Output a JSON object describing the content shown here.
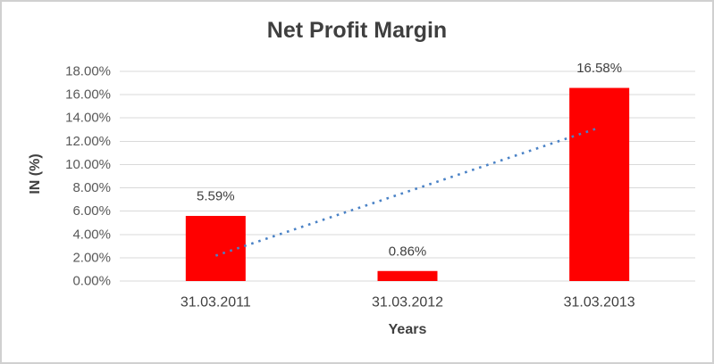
{
  "chart_data": {
    "type": "bar",
    "title": "Net Profit Margin",
    "xlabel": "Years",
    "ylabel": "IN (%)",
    "categories": [
      "31.03.2011",
      "31.03.2012",
      "31.03.2013"
    ],
    "values": [
      5.59,
      0.86,
      16.58
    ],
    "data_labels": [
      "5.59%",
      "0.86%",
      "16.58%"
    ],
    "ylim": [
      0,
      18
    ],
    "ytick_step": 2,
    "yticks": [
      "0.00%",
      "2.00%",
      "4.00%",
      "6.00%",
      "8.00%",
      "10.00%",
      "12.00%",
      "14.00%",
      "16.00%",
      "18.00%"
    ],
    "grid": true,
    "legend": false,
    "colors": {
      "bar": "#ff0000",
      "gridline": "#d9d9d9",
      "trendline": "#4a82c6",
      "title_text": "#3f3f3f",
      "tick_text": "#595959",
      "label_text": "#404040"
    },
    "trendline": {
      "type": "linear",
      "style": "dotted",
      "start_value_pct": 2.18,
      "end_value_pct": 13.17
    }
  }
}
